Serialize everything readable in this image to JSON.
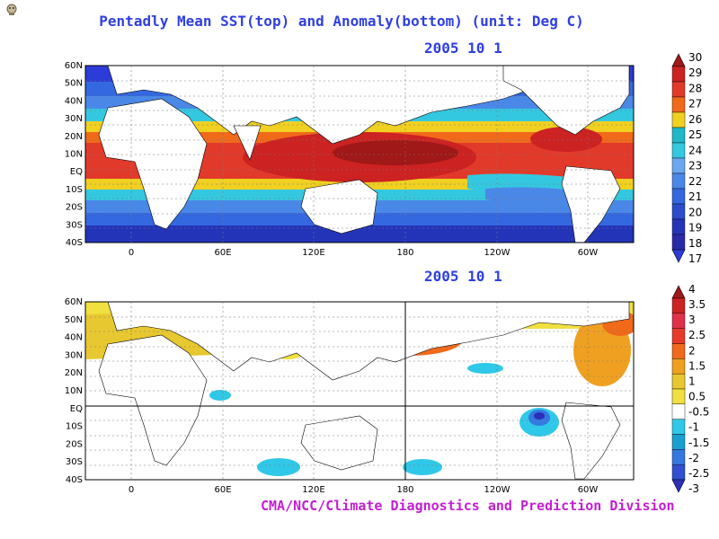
{
  "title": "Pentadly Mean SST(top) and Anomaly(bottom) (unit: Deg C)",
  "top_panel": {
    "date": "2005   10   1",
    "lat_ticks": [
      "60N",
      "50N",
      "40N",
      "30N",
      "20N",
      "10N",
      "EQ",
      "10S",
      "20S",
      "30S",
      "40S"
    ],
    "lon_ticks": [
      "0",
      "60E",
      "120E",
      "180",
      "120W",
      "60W"
    ],
    "colorbar": {
      "labels": [
        "30",
        "29",
        "28",
        "27",
        "26",
        "25",
        "24",
        "23",
        "22",
        "21",
        "20",
        "19",
        "18",
        "17"
      ],
      "colors": [
        "#a01818",
        "#cc2222",
        "#e23a2a",
        "#f06a1a",
        "#f0d020",
        "#20b8c8",
        "#34c8e0",
        "#6aa8f0",
        "#4a88e8",
        "#3468e0",
        "#2c4ccc",
        "#2434b8",
        "#2a2aa8",
        "#2c3cd8"
      ]
    }
  },
  "bottom_panel": {
    "date": "2005   10   1",
    "lat_ticks": [
      "60N",
      "50N",
      "40N",
      "30N",
      "20N",
      "10N",
      "EQ",
      "10S",
      "20S",
      "30S",
      "40S"
    ],
    "lon_ticks": [
      "0",
      "60E",
      "120E",
      "180",
      "120W",
      "60W"
    ],
    "colorbar": {
      "labels": [
        "4",
        "3.5",
        "3",
        "2.5",
        "2",
        "1.5",
        "1",
        "0.5",
        "-0.5",
        "-1",
        "-1.5",
        "-2",
        "-2.5",
        "-3"
      ],
      "colors": [
        "#a01818",
        "#cc2222",
        "#e0304a",
        "#e83a2a",
        "#f06a1a",
        "#f0a020",
        "#e8c830",
        "#f0e040",
        "#ffffff",
        "#30c8e8",
        "#1aa0d0",
        "#3478e0",
        "#3050d0",
        "#2c30b8"
      ]
    }
  },
  "credit": "CMA/NCC/Climate Diagnostics and Prediction Division"
}
